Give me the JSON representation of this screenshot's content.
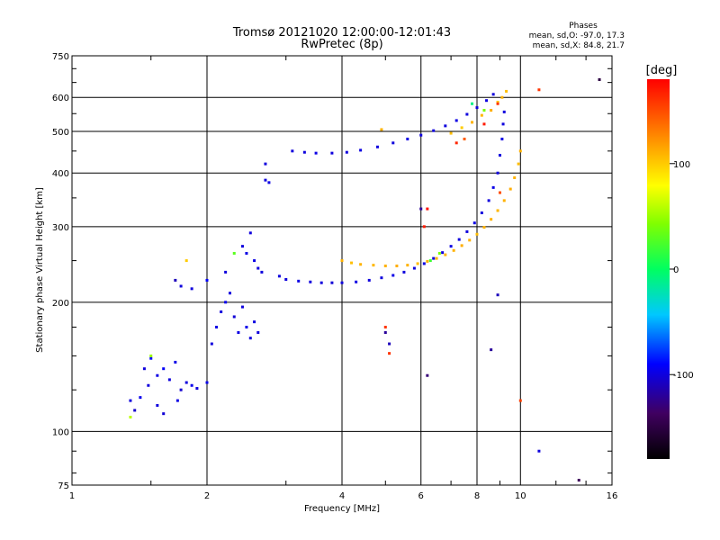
{
  "chart_data": {
    "type": "scatter",
    "title": "Tromsø 20121020 12:00:00-12:01:43",
    "subtitle": "RwPretec (8p)",
    "xlabel": "Frequency [MHz]",
    "ylabel": "Stationary phase Virtual Height [km]",
    "x_scale": "log",
    "y_scale": "log",
    "xlim": [
      1,
      16
    ],
    "ylim": [
      75,
      750
    ],
    "x_ticks": [
      1,
      2,
      4,
      6,
      8,
      10,
      16
    ],
    "x_tick_labels": [
      "1",
      "2",
      "4",
      "6",
      "8",
      "10",
      "16"
    ],
    "y_ticks": [
      75,
      100,
      200,
      300,
      400,
      500,
      600,
      750
    ],
    "y_tick_labels": [
      "75",
      "100",
      "200",
      "300",
      "400",
      "500",
      "600",
      "750"
    ],
    "grid": true,
    "stats": {
      "heading": "Phases",
      "line_o": "mean, sd,O: -97.0, 17.3",
      "line_x": "mean, sd,X:  84.8, 21.7"
    },
    "colorbar": {
      "label": "[deg]",
      "ticks": [
        -100,
        0,
        100
      ],
      "tick_labels": [
        "-100",
        "0",
        "100"
      ],
      "range": [
        -180,
        180
      ]
    },
    "series": [
      {
        "points": [
          [
            1.35,
            118,
            -100
          ],
          [
            1.38,
            112,
            -105
          ],
          [
            1.42,
            120,
            -95
          ],
          [
            1.48,
            128,
            -100
          ],
          [
            1.55,
            135,
            -98
          ],
          [
            1.6,
            140,
            -92
          ],
          [
            1.65,
            132,
            -100
          ],
          [
            1.7,
            145,
            -97
          ],
          [
            1.75,
            125,
            -104
          ],
          [
            1.8,
            130,
            -100
          ],
          [
            1.85,
            128,
            -96
          ],
          [
            1.55,
            115,
            -100
          ],
          [
            1.6,
            110,
            -102
          ],
          [
            1.72,
            118,
            -98
          ],
          [
            1.9,
            126,
            -100
          ],
          [
            2.0,
            130,
            -96
          ],
          [
            2.05,
            160,
            -100
          ],
          [
            2.1,
            175,
            -98
          ],
          [
            2.15,
            190,
            -100
          ],
          [
            2.2,
            200,
            -95
          ],
          [
            2.25,
            210,
            -100
          ],
          [
            2.3,
            185,
            -102
          ],
          [
            2.35,
            170,
            -98
          ],
          [
            2.4,
            195,
            -100
          ],
          [
            2.45,
            175,
            -96
          ],
          [
            2.5,
            165,
            -100
          ],
          [
            2.55,
            180,
            -99
          ],
          [
            2.6,
            170,
            -100
          ],
          [
            2.4,
            270,
            -100
          ],
          [
            2.45,
            260,
            -98
          ],
          [
            2.5,
            290,
            -100
          ],
          [
            2.55,
            250,
            -97
          ],
          [
            2.6,
            240,
            -100
          ],
          [
            2.65,
            235,
            -100
          ],
          [
            2.7,
            385,
            -100
          ],
          [
            2.75,
            380,
            -98
          ],
          [
            2.7,
            420,
            -100
          ],
          [
            1.5,
            148,
            -90
          ],
          [
            1.45,
            140,
            -100
          ],
          [
            1.7,
            225,
            -110
          ],
          [
            1.75,
            218,
            -100
          ],
          [
            1.85,
            215,
            -100
          ],
          [
            2.0,
            225,
            -90
          ],
          [
            2.2,
            235,
            -100
          ],
          [
            2.9,
            230,
            -100
          ],
          [
            3.0,
            226,
            -100
          ],
          [
            3.2,
            224,
            -98
          ],
          [
            3.4,
            223,
            -100
          ],
          [
            3.6,
            222,
            -100
          ],
          [
            3.8,
            222,
            -102
          ],
          [
            4.0,
            222,
            -100
          ],
          [
            4.3,
            223,
            -98
          ],
          [
            4.6,
            225,
            -100
          ],
          [
            4.9,
            228,
            -100
          ],
          [
            5.2,
            231,
            -97
          ],
          [
            5.5,
            235,
            -100
          ],
          [
            5.8,
            240,
            -100
          ],
          [
            6.1,
            246,
            -98
          ],
          [
            6.4,
            253,
            -100
          ],
          [
            6.7,
            261,
            -100
          ],
          [
            7.0,
            270,
            -99
          ],
          [
            7.3,
            280,
            -100
          ],
          [
            7.6,
            292,
            -100
          ],
          [
            7.9,
            306,
            -98
          ],
          [
            8.2,
            323,
            -100
          ],
          [
            8.5,
            345,
            -100
          ],
          [
            8.7,
            370,
            -97
          ],
          [
            8.9,
            400,
            -100
          ],
          [
            9.0,
            440,
            -100
          ],
          [
            9.1,
            480,
            -98
          ],
          [
            9.15,
            520,
            -100
          ],
          [
            9.2,
            555,
            -100
          ],
          [
            3.1,
            450,
            -100
          ],
          [
            3.3,
            447,
            -100
          ],
          [
            3.5,
            445,
            -98
          ],
          [
            3.8,
            445,
            -100
          ],
          [
            4.1,
            447,
            -100
          ],
          [
            4.4,
            452,
            -99
          ],
          [
            4.8,
            460,
            -100
          ],
          [
            5.2,
            470,
            -100
          ],
          [
            5.6,
            480,
            -98
          ],
          [
            6.0,
            490,
            -100
          ],
          [
            6.4,
            502,
            -100
          ],
          [
            6.8,
            515,
            -100
          ],
          [
            7.2,
            530,
            -98
          ],
          [
            7.6,
            548,
            -100
          ],
          [
            8.0,
            568,
            -100
          ],
          [
            8.4,
            590,
            -99
          ],
          [
            8.7,
            610,
            -100
          ],
          [
            5.0,
            170,
            -120
          ],
          [
            5.1,
            160,
            -110
          ],
          [
            6.2,
            135,
            -130
          ],
          [
            8.6,
            155,
            -120
          ],
          [
            8.9,
            208,
            -110
          ],
          [
            11.0,
            90,
            -100
          ],
          [
            13.5,
            77,
            -140
          ],
          [
            15.0,
            660,
            -150
          ],
          [
            6.0,
            330,
            -120
          ]
        ]
      },
      {
        "points": [
          [
            4.0,
            250,
            110
          ],
          [
            4.2,
            247,
            105
          ],
          [
            4.4,
            245,
            110
          ],
          [
            4.7,
            244,
            108
          ],
          [
            5.0,
            243,
            110
          ],
          [
            5.3,
            243,
            112
          ],
          [
            5.6,
            244,
            110
          ],
          [
            5.9,
            246,
            106
          ],
          [
            6.2,
            249,
            110
          ],
          [
            6.5,
            253,
            110
          ],
          [
            6.8,
            258,
            108
          ],
          [
            7.1,
            264,
            110
          ],
          [
            7.4,
            271,
            112
          ],
          [
            7.7,
            279,
            110
          ],
          [
            8.0,
            288,
            106
          ],
          [
            8.3,
            299,
            110
          ],
          [
            8.6,
            312,
            110
          ],
          [
            8.9,
            327,
            108
          ],
          [
            9.2,
            345,
            110
          ],
          [
            9.5,
            367,
            112
          ],
          [
            9.7,
            390,
            110
          ],
          [
            9.9,
            420,
            106
          ],
          [
            10.0,
            450,
            110
          ],
          [
            7.0,
            495,
            105
          ],
          [
            7.4,
            510,
            100
          ],
          [
            7.8,
            525,
            110
          ],
          [
            8.2,
            545,
            108
          ],
          [
            8.6,
            560,
            112
          ],
          [
            8.9,
            585,
            100
          ],
          [
            9.1,
            600,
            110
          ],
          [
            9.3,
            620,
            105
          ],
          [
            1.8,
            250,
            100
          ],
          [
            1.35,
            108,
            60
          ],
          [
            1.5,
            150,
            50
          ],
          [
            2.3,
            260,
            30
          ],
          [
            4.9,
            505,
            110
          ],
          [
            6.3,
            250,
            20
          ],
          [
            6.6,
            260,
            40
          ],
          [
            7.8,
            580,
            -10
          ],
          [
            8.3,
            560,
            40
          ]
        ]
      },
      {
        "points": [
          [
            5.0,
            175,
            160
          ],
          [
            5.1,
            152,
            160
          ],
          [
            6.1,
            300,
            170
          ],
          [
            6.2,
            330,
            175
          ],
          [
            7.2,
            470,
            165
          ],
          [
            8.3,
            520,
            170
          ],
          [
            8.9,
            580,
            160
          ],
          [
            10.0,
            118,
            155
          ],
          [
            11.0,
            625,
            160
          ],
          [
            9.0,
            360,
            150
          ],
          [
            7.5,
            480,
            145
          ]
        ]
      }
    ]
  }
}
